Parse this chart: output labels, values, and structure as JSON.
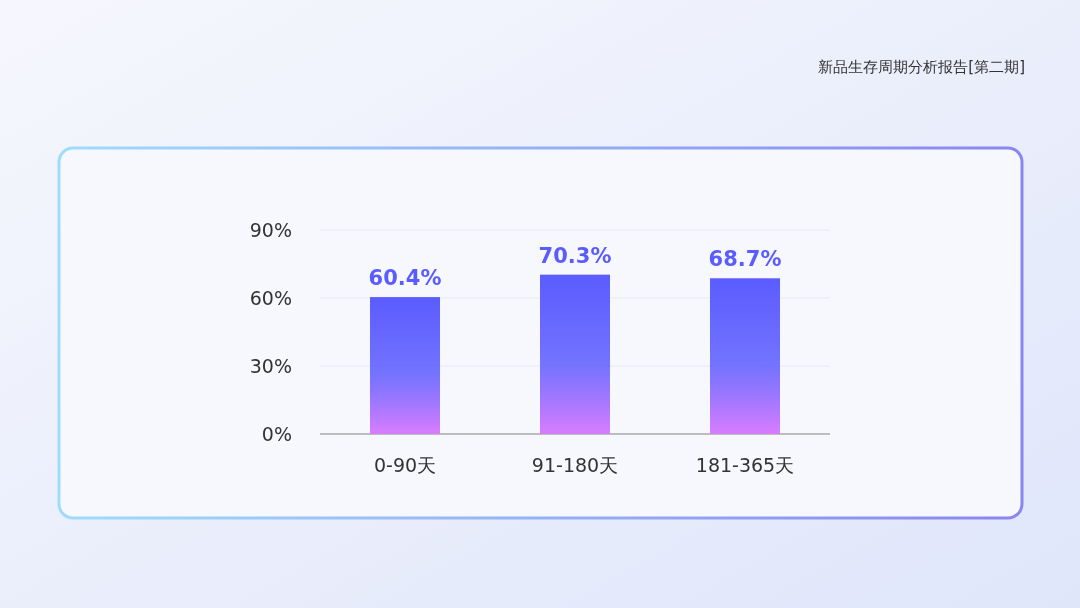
{
  "chart_data": {
    "type": "bar",
    "title": "新品生存周期分析报告[第二期]",
    "categories": [
      "0-90天",
      "91-180天",
      "181-365天"
    ],
    "values": [
      60.4,
      70.3,
      68.7
    ],
    "color": "#5b5cff",
    "ylim": [
      0,
      90
    ],
    "yticks": [
      {
        "value": 0,
        "label": "0%"
      },
      {
        "value": 30,
        "label": "30%"
      },
      {
        "value": 60,
        "label": "60%"
      },
      {
        "value": 90,
        "label": "90%"
      }
    ],
    "grid": "y",
    "data_labels": true,
    "value_labels": [
      "60.4%",
      "70.3%",
      "68.7%"
    ]
  }
}
